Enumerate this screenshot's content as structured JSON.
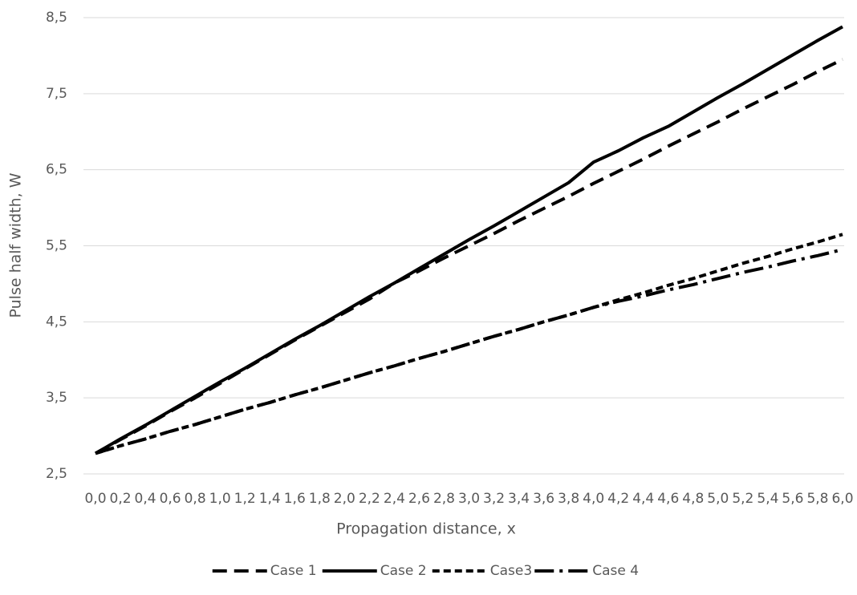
{
  "chart_data": {
    "type": "line",
    "x_label": "Propagation distance, x",
    "y_label": "Pulse half width, W",
    "categories": [
      "0,0",
      "0,2",
      "0,4",
      "0,6",
      "0,8",
      "1,0",
      "1,2",
      "1,4",
      "1,6",
      "1,8",
      "2,0",
      "2,2",
      "2,4",
      "2,6",
      "2,8",
      "3,0",
      "3,2",
      "3,4",
      "3,6",
      "3,8",
      "4,0",
      "4,2",
      "4,4",
      "4,6",
      "4,8",
      "5,0",
      "5,2",
      "5,4",
      "5,6",
      "5,8",
      "6,0"
    ],
    "series": [
      {
        "name": "Case 1",
        "color": "#000000",
        "dash": "18,9",
        "values": [
          2.77,
          2.95,
          3.13,
          3.32,
          3.5,
          3.69,
          3.88,
          4.07,
          4.26,
          4.44,
          4.62,
          4.8,
          5.01,
          5.17,
          5.34,
          5.5,
          5.66,
          5.83,
          5.99,
          6.15,
          6.32,
          6.48,
          6.64,
          6.81,
          6.97,
          7.13,
          7.3,
          7.46,
          7.62,
          7.79,
          7.95
        ]
      },
      {
        "name": "Case 2",
        "color": "#000000",
        "dash": "none",
        "values": [
          2.77,
          2.96,
          3.14,
          3.33,
          3.52,
          3.71,
          3.89,
          4.08,
          4.27,
          4.45,
          4.64,
          4.83,
          5.01,
          5.2,
          5.39,
          5.58,
          5.76,
          5.95,
          6.14,
          6.33,
          6.6,
          6.75,
          6.92,
          7.07,
          7.26,
          7.45,
          7.63,
          7.82,
          8.01,
          8.2,
          8.38
        ]
      },
      {
        "name": "Case3",
        "color": "#000000",
        "dash": "9,5",
        "values": [
          2.77,
          2.87,
          2.96,
          3.06,
          3.15,
          3.25,
          3.35,
          3.44,
          3.54,
          3.63,
          3.73,
          3.83,
          3.92,
          4.02,
          4.11,
          4.21,
          4.31,
          4.4,
          4.5,
          4.59,
          4.69,
          4.79,
          4.88,
          4.98,
          5.07,
          5.17,
          5.27,
          5.36,
          5.46,
          5.55,
          5.65
        ]
      },
      {
        "name": "Case 4",
        "color": "#000000",
        "dash": "24,7,4,7",
        "values": [
          2.77,
          2.87,
          2.96,
          3.06,
          3.15,
          3.25,
          3.35,
          3.44,
          3.54,
          3.63,
          3.73,
          3.83,
          3.92,
          4.02,
          4.11,
          4.21,
          4.31,
          4.4,
          4.5,
          4.59,
          4.69,
          4.77,
          4.84,
          4.92,
          4.99,
          5.07,
          5.15,
          5.22,
          5.3,
          5.37,
          5.45
        ]
      }
    ],
    "ylim": [
      2.5,
      8.5
    ],
    "yticks": [
      {
        "value": 2.5,
        "label": "2,5"
      },
      {
        "value": 3.5,
        "label": "3,5"
      },
      {
        "value": 4.5,
        "label": "4,5"
      },
      {
        "value": 5.5,
        "label": "5,5"
      },
      {
        "value": 6.5,
        "label": "6,5"
      },
      {
        "value": 7.5,
        "label": "7,5"
      },
      {
        "value": 8.5,
        "label": "8,5"
      }
    ],
    "grid": true,
    "legend": "bottom"
  }
}
